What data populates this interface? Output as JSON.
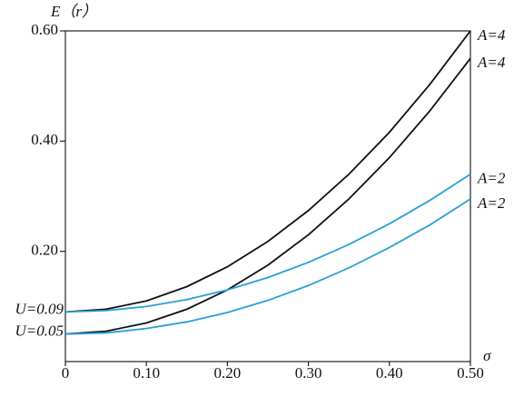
{
  "chart_data": {
    "type": "line",
    "y_label": "E（r）",
    "x_label": "σ",
    "x": [
      0,
      0.05,
      0.1,
      0.15,
      0.2,
      0.25,
      0.3,
      0.35,
      0.4,
      0.45,
      0.5
    ],
    "series": [
      {
        "name": "A=4",
        "color": "#111111",
        "values": [
          0.09,
          0.095,
          0.11,
          0.136,
          0.172,
          0.218,
          0.274,
          0.34,
          0.416,
          0.503,
          0.6
        ]
      },
      {
        "name": "A=4",
        "color": "#111111",
        "values": [
          0.05,
          0.055,
          0.07,
          0.095,
          0.13,
          0.175,
          0.23,
          0.295,
          0.37,
          0.455,
          0.55
        ]
      },
      {
        "name": "A=2",
        "color": "#2a9fd6",
        "values": [
          0.09,
          0.0925,
          0.1,
          0.1125,
          0.13,
          0.1525,
          0.18,
          0.2125,
          0.25,
          0.2925,
          0.34
        ]
      },
      {
        "name": "A=2",
        "color": "#2a9fd6",
        "values": [
          0.05,
          0.052,
          0.06,
          0.072,
          0.089,
          0.111,
          0.138,
          0.17,
          0.207,
          0.248,
          0.295
        ]
      }
    ],
    "annotations": [
      "U=0.09",
      "U=0.05"
    ],
    "xlim": [
      0,
      0.5
    ],
    "xticks": [
      0,
      {
        "value": 0.1,
        "label": "0.10"
      },
      {
        "value": 0.2,
        "label": "0.20"
      },
      {
        "value": 0.3,
        "label": "0.30"
      },
      {
        "value": 0.4,
        "label": "0.40"
      },
      {
        "value": 0.5,
        "label": "0.50"
      }
    ],
    "ylim": [
      0,
      0.6
    ],
    "yticks": [
      {
        "value": 0.2,
        "label": "0.20"
      },
      {
        "value": 0.4,
        "label": "0.40"
      },
      {
        "value": 0.6,
        "label": "0.60"
      }
    ]
  }
}
